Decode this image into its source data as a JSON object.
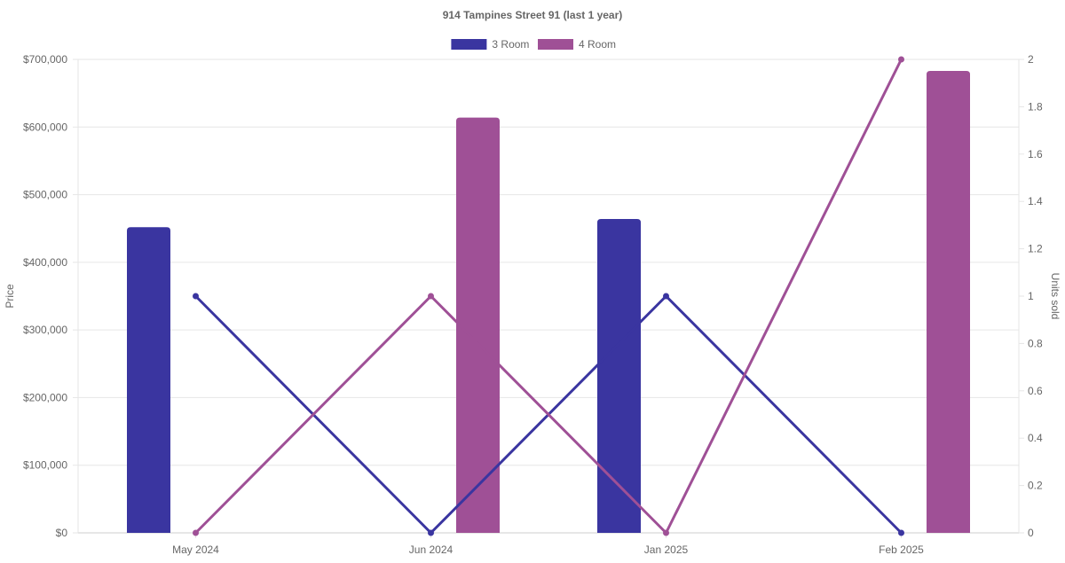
{
  "chart_data": {
    "type": "bar",
    "title": "914 Tampines Street 91 (last 1 year)",
    "categories": [
      "May 2024",
      "Jun 2024",
      "Jan 2025",
      "Feb 2025"
    ],
    "y_left": {
      "label": "Price",
      "min": 0,
      "max": 700000,
      "ticks": [
        "$0",
        "$100,000",
        "$200,000",
        "$300,000",
        "$400,000",
        "$500,000",
        "$600,000",
        "$700,000"
      ],
      "tick_values": [
        0,
        100000,
        200000,
        300000,
        400000,
        500000,
        600000,
        700000
      ]
    },
    "y_right": {
      "label": "Units sold",
      "min": 0,
      "max": 2,
      "ticks": [
        "0",
        "0.2",
        "0.4",
        "0.6",
        "0.8",
        "1",
        "1.2",
        "1.4",
        "1.6",
        "1.8",
        "2"
      ],
      "tick_values": [
        0,
        0.2,
        0.4,
        0.6,
        0.8,
        1,
        1.2,
        1.4,
        1.6,
        1.8,
        2
      ]
    },
    "series": [
      {
        "name": "3 Room",
        "color": "#3a35a0",
        "price": [
          452000,
          null,
          464000,
          null
        ],
        "units_sold": [
          1,
          0,
          1,
          0
        ]
      },
      {
        "name": "4 Room",
        "color": "#9f5096",
        "price": [
          null,
          614000,
          null,
          683000
        ],
        "units_sold": [
          0,
          1,
          0,
          2
        ]
      }
    ],
    "legend_position": "top-center",
    "grid": true
  }
}
